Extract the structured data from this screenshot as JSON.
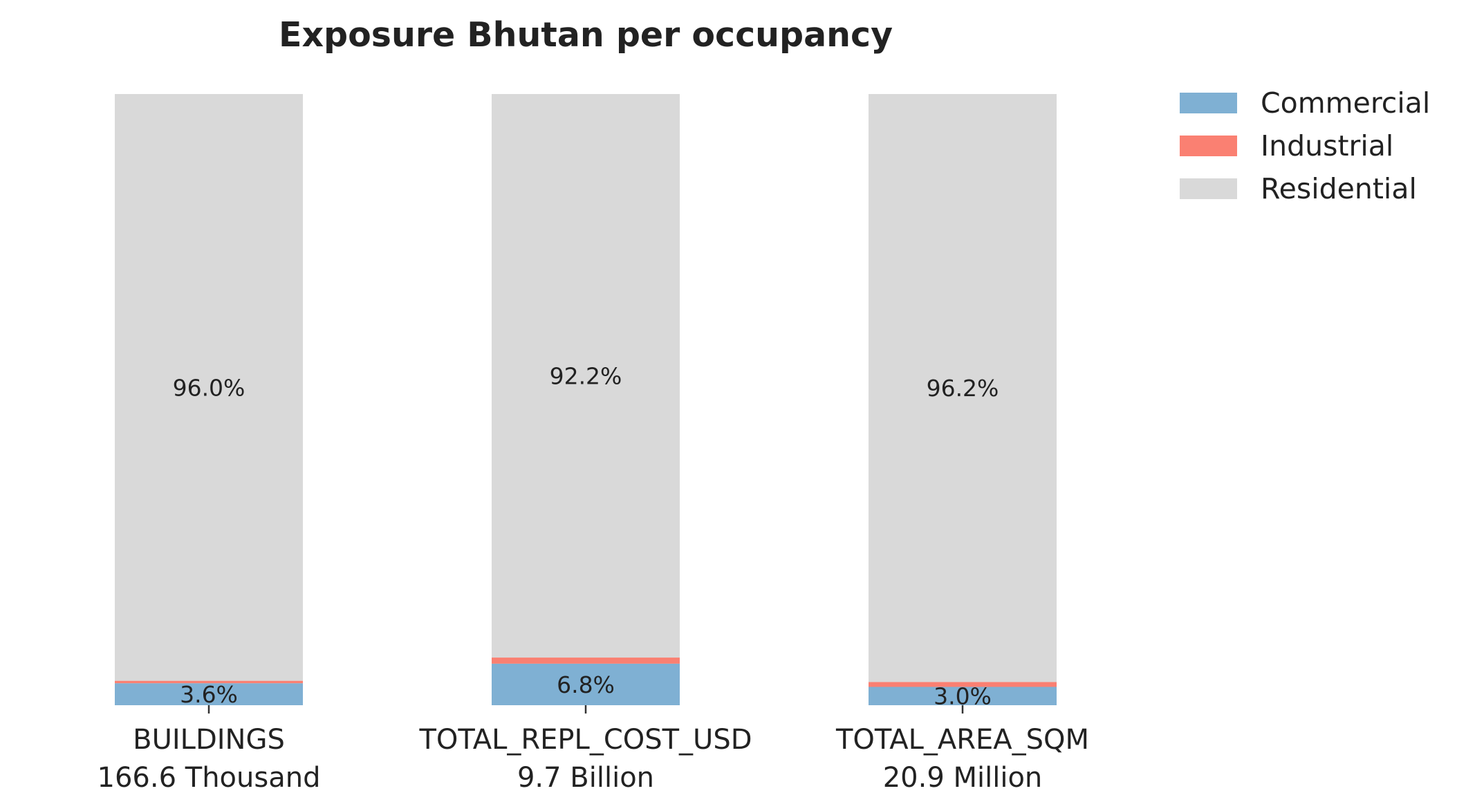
{
  "chart_data": {
    "type": "bar",
    "stacked": true,
    "normalized_percent": true,
    "title": "Exposure Bhutan per occupancy",
    "xlabel": "",
    "ylabel": "",
    "ylim": [
      0,
      100
    ],
    "grid": false,
    "legend_position": "top-right, outside plot",
    "categories": [
      "BUILDINGS",
      "TOTAL_REPL_COST_USD",
      "TOTAL_AREA_SQM"
    ],
    "category_totals": [
      "166.6 Thousand",
      "9.7 Billion",
      "20.9 Million"
    ],
    "series": [
      {
        "name": "Commercial",
        "color": "#7fb0d3",
        "values": [
          3.6,
          6.8,
          3.0
        ],
        "labels": [
          "3.6%",
          "6.8%",
          "3.0%"
        ]
      },
      {
        "name": "Industrial",
        "color": "#fa8072",
        "values": [
          0.4,
          1.0,
          0.8
        ],
        "labels": [
          "",
          "",
          ""
        ]
      },
      {
        "name": "Residential",
        "color": "#d9d9d9",
        "values": [
          96.0,
          92.2,
          96.2
        ],
        "labels": [
          "96.0%",
          "92.2%",
          "96.2%"
        ]
      }
    ]
  }
}
